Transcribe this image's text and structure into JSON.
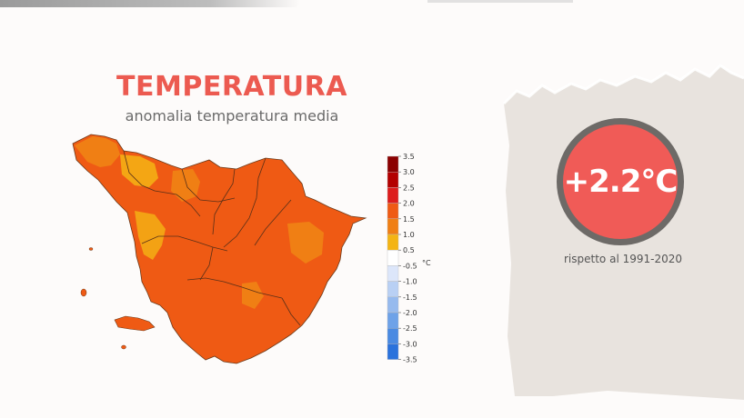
{
  "title": "TEMPERATURA",
  "subtitle": "anomalia temperatura media",
  "highlight": {
    "value": "+2.2°C",
    "reference": "rispetto al 1991-2020"
  },
  "legend": {
    "unit": "°C",
    "ticks": [
      "3.5",
      "3.0",
      "2.5",
      "2.0",
      "1.5",
      "1.0",
      "0.5",
      "-0.5",
      "-1.0",
      "-1.5",
      "-2.0",
      "-2.5",
      "-3.0",
      "-3.5"
    ],
    "bins": [
      {
        "from": 3.0,
        "to": 3.5,
        "color": "#8b0000"
      },
      {
        "from": 2.5,
        "to": 3.0,
        "color": "#b30000"
      },
      {
        "from": 2.0,
        "to": 2.5,
        "color": "#dd1c1c"
      },
      {
        "from": 1.5,
        "to": 2.0,
        "color": "#ef5a14"
      },
      {
        "from": 1.0,
        "to": 1.5,
        "color": "#f07f14"
      },
      {
        "from": 0.5,
        "to": 1.0,
        "color": "#f4b414"
      },
      {
        "from": -0.5,
        "to": 0.5,
        "color": "#ffffff"
      },
      {
        "from": -1.0,
        "to": -0.5,
        "color": "#dce6fa"
      },
      {
        "from": -1.5,
        "to": -1.0,
        "color": "#b9d0f4"
      },
      {
        "from": -2.0,
        "to": -1.5,
        "color": "#96baee"
      },
      {
        "from": -2.5,
        "to": -2.0,
        "color": "#6ea2e8"
      },
      {
        "from": -3.0,
        "to": -2.5,
        "color": "#4a8ae2"
      },
      {
        "from": -3.5,
        "to": -3.0,
        "color": "#2a72dc"
      }
    ]
  },
  "colors": {
    "title": "#ec5a50",
    "badge": "#f05b57",
    "badge_ring": "#6d6a67",
    "map_base": "#ef5a14",
    "map_warm": "#f07f14",
    "map_mild": "#f4b414",
    "paper": "#e8e3de"
  }
}
